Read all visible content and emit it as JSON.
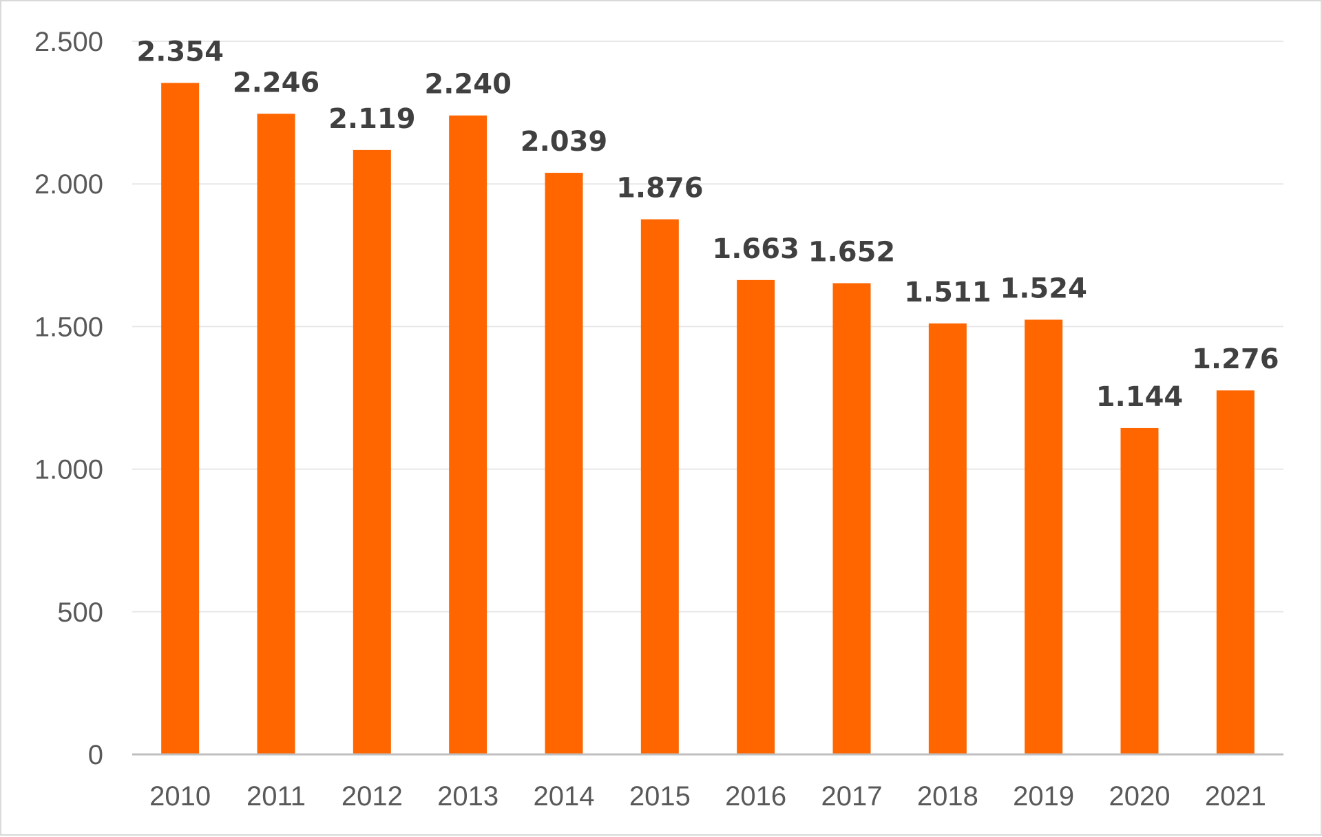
{
  "chart_data": {
    "type": "bar",
    "categories": [
      "2010",
      "2011",
      "2012",
      "2013",
      "2014",
      "2015",
      "2016",
      "2017",
      "2018",
      "2019",
      "2020",
      "2021"
    ],
    "values": [
      2354,
      2246,
      2119,
      2240,
      2039,
      1876,
      1663,
      1652,
      1511,
      1524,
      1144,
      1276
    ],
    "value_labels": [
      "2.354",
      "2.246",
      "2.119",
      "2.240",
      "2.039",
      "1.876",
      "1.663",
      "1.652",
      "1.511",
      "1.524",
      "1.144",
      "1.276"
    ],
    "ylim": [
      0,
      2500
    ],
    "yticks": [
      0,
      500,
      1000,
      1500,
      2000,
      2500
    ],
    "ytick_labels": [
      "0",
      "500",
      "1.000",
      "1.500",
      "2.000",
      "2.500"
    ],
    "title": "",
    "xlabel": "",
    "ylabel": "",
    "grid": true,
    "colors": {
      "bar": "#ff6600",
      "grid": "#e8e8e8",
      "axis": "#bfbfbf",
      "data_label": "#404040",
      "tick_label": "#595959"
    }
  }
}
